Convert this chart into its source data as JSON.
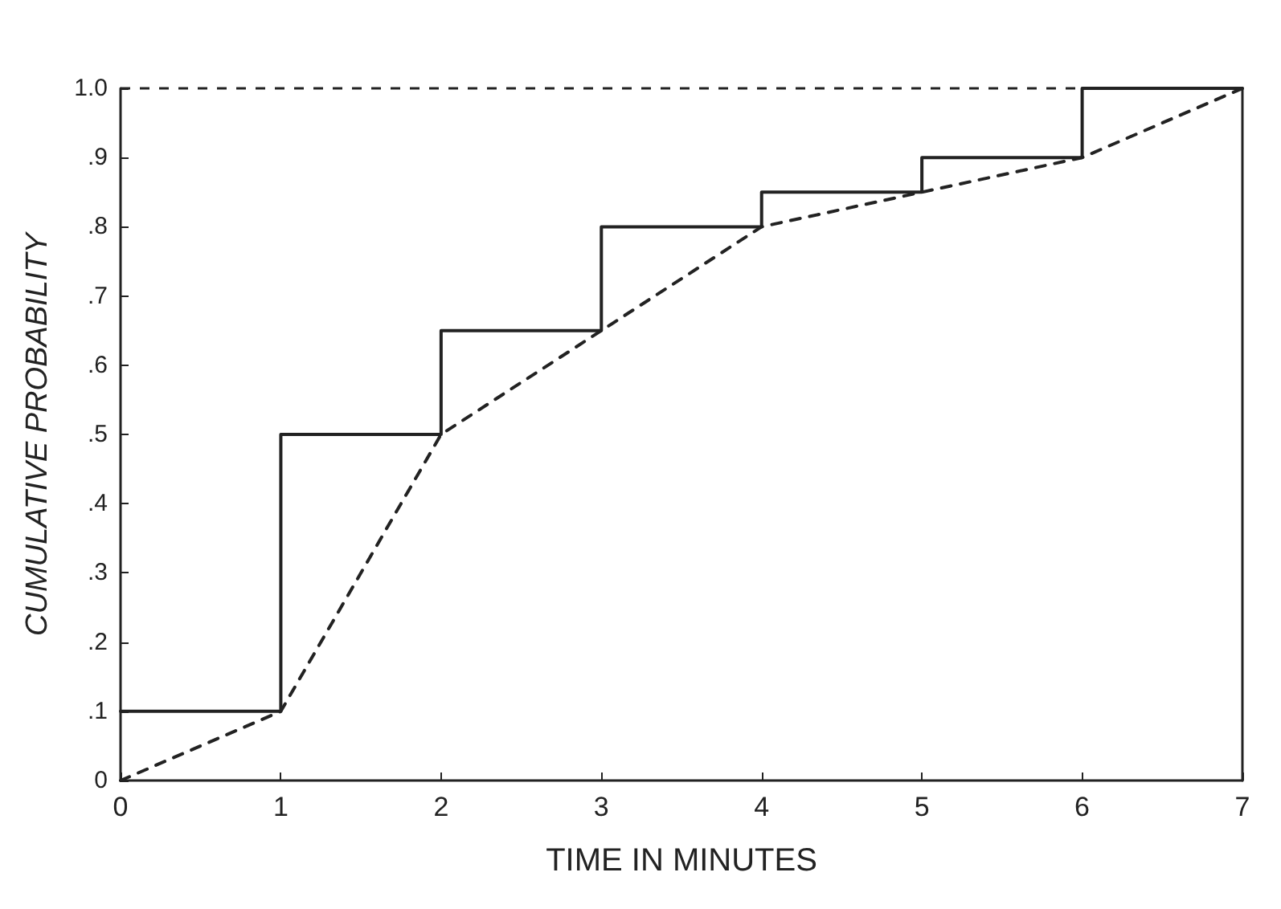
{
  "chart_data": {
    "type": "line",
    "xlabel": "TIME IN MINUTES",
    "ylabel": "CUMULATIVE PROBABILITY",
    "x": [
      0,
      1,
      2,
      3,
      4,
      5,
      6,
      7
    ],
    "series": [
      {
        "type": "step",
        "color": "#222222",
        "line_style": "solid",
        "values": [
          0.1,
          0.5,
          0.65,
          0.8,
          0.85,
          0.9,
          1.0,
          1.0
        ]
      },
      {
        "color": "#222222",
        "line_style": "dashed",
        "values": [
          0,
          0.1,
          0.5,
          0.65,
          0.8,
          0.85,
          0.9,
          1.0
        ]
      }
    ],
    "xlim": [
      0,
      7
    ],
    "xticks": [
      0,
      1,
      2,
      3,
      4,
      5,
      6,
      7
    ],
    "ylim": [
      0,
      1.0
    ],
    "yticks": [
      0,
      {
        "value": 0.1,
        "label": ".1"
      },
      {
        "value": 0.2,
        "label": ".2"
      },
      {
        "value": 0.3,
        "label": ".3"
      },
      {
        "value": 0.4,
        "label": ".4"
      },
      {
        "value": 0.5,
        "label": ".5"
      },
      {
        "value": 0.6,
        "label": ".6"
      },
      {
        "value": 0.7,
        "label": ".7"
      },
      {
        "value": 0.8,
        "label": ".8"
      },
      {
        "value": 0.9,
        "label": ".9"
      },
      {
        "value": 1.0,
        "label": "1.0"
      }
    ],
    "ref_lines": [
      {
        "axis": "y",
        "value": 1.0,
        "color": "#222222",
        "line_style": "dashed"
      }
    ],
    "grid": false,
    "marker": "none"
  }
}
